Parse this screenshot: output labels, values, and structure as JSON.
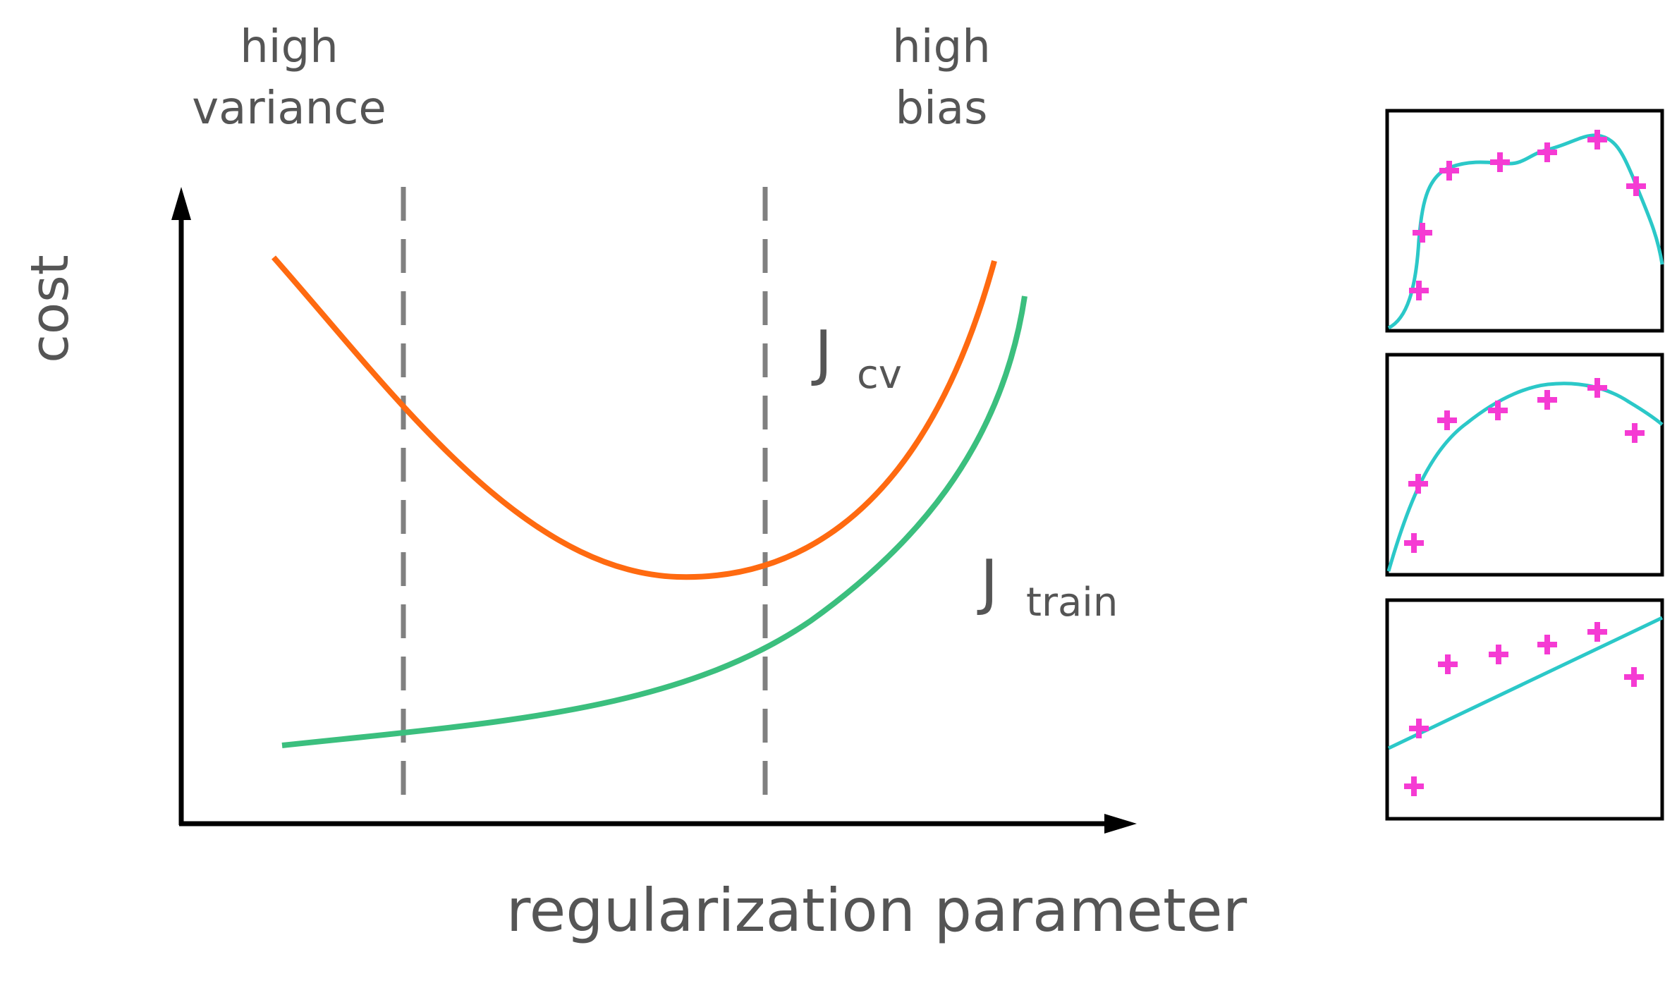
{
  "labels": {
    "region_left_line1": "high",
    "region_left_line2": "variance",
    "region_right_line1": "high",
    "region_right_line2": "bias",
    "y_axis": "cost",
    "x_axis": "regularization parameter",
    "cv_symbol": "J",
    "cv_subscript": "cv",
    "train_symbol": "J",
    "train_subscript": "train"
  },
  "colors": {
    "axis": "#000000",
    "text": "#555555",
    "divider": "#808080",
    "cv_curve": "#FF6A10",
    "train_curve": "#3BBF7E",
    "fit_curve": "#2BC8C8",
    "data_points": "#F53BD3",
    "panel_border": "#000000"
  },
  "icons": {
    "x_axis_arrow": "arrow-right-icon",
    "y_axis_arrow": "arrow-up-icon",
    "data_point_marker": "plus-icon"
  }
}
